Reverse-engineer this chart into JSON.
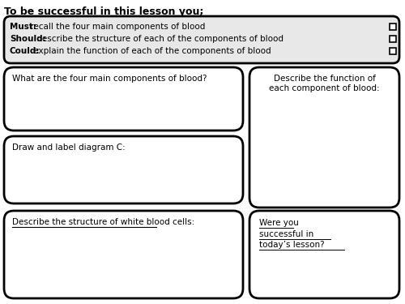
{
  "title": "To be successful in this lesson you;",
  "must_label": "Must:",
  "must_text": " recall the four main components of blood",
  "should_label": "Should:",
  "should_text": " describe the structure of each of the components of blood",
  "could_label": "Could:",
  "could_text": " explain the function of each of the components of blood",
  "box1_text": "What are the four main components of blood?",
  "box2_text": "Describe the function of\neach component of blood:",
  "box3_text": "Draw and label diagram C:",
  "box4_text": "Describe the structure of white blood cells:",
  "box5_text": "Were you\nsuccessful in\ntoday’s lesson?",
  "bg_color": "#ffffff",
  "border_color": "#000000",
  "text_color": "#000000",
  "header_bg": "#e8e8e8",
  "font_size_title": 9,
  "font_size_body": 7.5,
  "font_size_small": 7
}
